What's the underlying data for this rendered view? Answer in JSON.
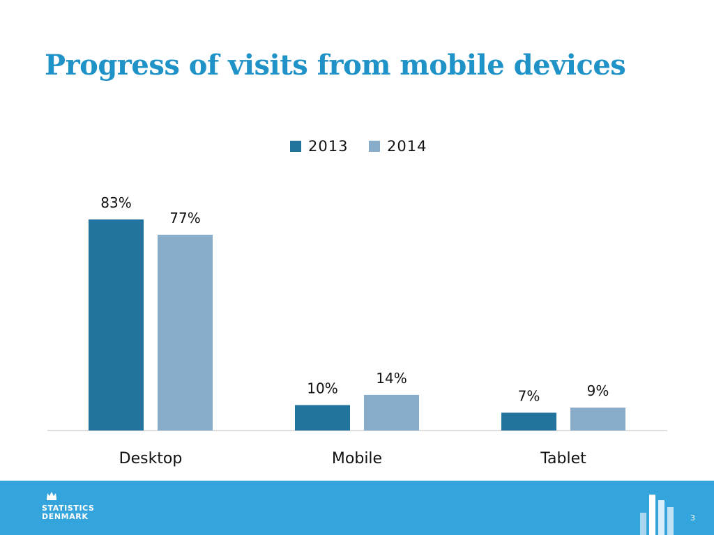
{
  "slide": {
    "title": "Progress of visits from mobile devices",
    "page_number": "3"
  },
  "footer": {
    "logo_lines": [
      "STATISTICS",
      "DENMARK"
    ],
    "logo_icon": "crown-icon",
    "mark_icon": "bar-mark-icon"
  },
  "colors": {
    "title": "#1f92c7",
    "series_2013": "#23739f",
    "series_2014": "#89acca",
    "footer": "#34a4dc"
  },
  "chart_data": {
    "type": "bar",
    "title": "Progress of visits from mobile devices",
    "xlabel": "",
    "ylabel": "",
    "ylim": [
      0,
      100
    ],
    "grid": false,
    "legend_position": "top-center",
    "categories": [
      "Desktop",
      "Mobile",
      "Tablet"
    ],
    "series": [
      {
        "name": "2013",
        "values": [
          83,
          10,
          7
        ],
        "labels": [
          "83%",
          "10%",
          "7%"
        ],
        "color": "#23739f"
      },
      {
        "name": "2014",
        "values": [
          77,
          14,
          9
        ],
        "labels": [
          "77%",
          "14%",
          "9%"
        ],
        "color": "#89acca"
      }
    ]
  }
}
